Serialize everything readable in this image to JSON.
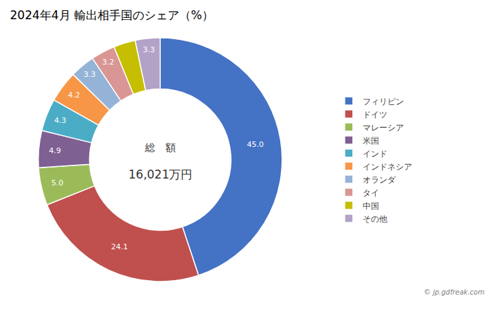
{
  "chart_data": {
    "type": "pie",
    "title": "2024年4月 輸出相手国のシェア（%）",
    "categories": [
      "フィリピン",
      "ドイツ",
      "マレーシア",
      "米国",
      "インド",
      "インドネシア",
      "オランダ",
      "タイ",
      "中国",
      "その他"
    ],
    "values": [
      45.0,
      24.1,
      5.0,
      4.9,
      4.3,
      4.2,
      3.3,
      3.2,
      2.9,
      3.3
    ],
    "value_labels": [
      "45.0",
      "24.1",
      "5.0",
      "4.9",
      "4.3",
      "4.2",
      "3.3",
      "3.2",
      null,
      "3.3"
    ],
    "colors": [
      "#4472C4",
      "#C0504D",
      "#9BBB59",
      "#7F6092",
      "#4BACC6",
      "#F79646",
      "#95B3D7",
      "#D99694",
      "#C6BE00",
      "#B3A2C7"
    ],
    "data_labels": true,
    "legend": "right",
    "annotations": [
      "総　額",
      "16,021万円",
      "© jp.gdfreak.com"
    ]
  }
}
